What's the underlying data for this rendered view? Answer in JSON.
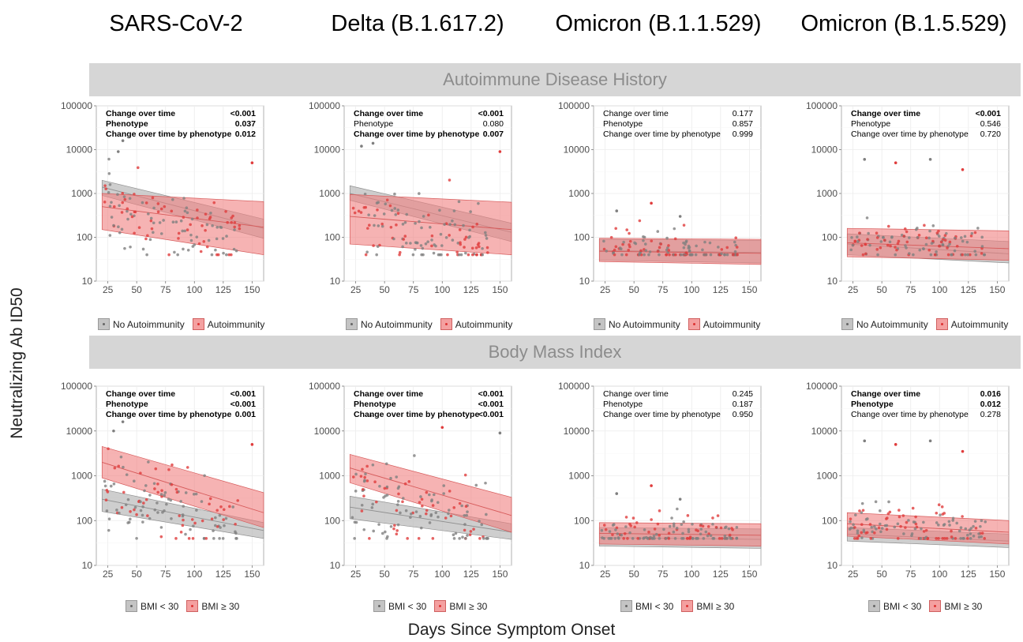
{
  "column_titles": [
    "SARS-CoV-2",
    "Delta (B.1.617.2)",
    "Omicron (B.1.1.529)",
    "Omicron (B.1.5.529)"
  ],
  "row_strips": [
    "Autoimmune Disease History",
    "Body Mass Index"
  ],
  "y_axis_label": "Neutralizing Ab ID50",
  "x_axis_label": "Days Since Symptom Onset",
  "legends": [
    {
      "gray": "No Autoimmunity",
      "red": "Autoimmunity"
    },
    {
      "gray": "BMI < 30",
      "red": "BMI ≥ 30"
    }
  ],
  "stat_labels": [
    "Change over time",
    "Phenotype",
    "Change over time by phenotype"
  ],
  "colors": {
    "gray_fill": "#bdbdbd",
    "red_fill": "#f08080",
    "gray_point": "#7f7f7f",
    "red_point": "#e03c3c",
    "strip": "#d6d6d6"
  },
  "chart_data": [
    {
      "type": "scatter",
      "row": 0,
      "col": 0,
      "ylog": true,
      "ylim": [
        10,
        100000
      ],
      "xlim": [
        15,
        160
      ],
      "x_ticks": [
        25,
        50,
        75,
        100,
        125,
        150
      ],
      "y_ticks": [
        10,
        100,
        1000,
        10000,
        100000
      ],
      "y_tick_labels": [
        "10",
        "100",
        "1000",
        "10000",
        "100000"
      ],
      "stats": [
        {
          "value": "<0.001",
          "bold": true
        },
        {
          "value": "0.037",
          "bold": true
        },
        {
          "value": "0.012",
          "bold": true
        }
      ],
      "series": [
        {
          "name": "No Autoimmunity",
          "fit": [
            [
              20,
              1400
            ],
            [
              160,
              160
            ]
          ],
          "ci_upper": [
            [
              20,
              2000
            ],
            [
              160,
              260
            ]
          ],
          "ci_lower": [
            [
              20,
              900
            ],
            [
              160,
              95
            ]
          ]
        },
        {
          "name": "Autoimmunity",
          "fit": [
            [
              20,
              500
            ],
            [
              160,
              170
            ]
          ],
          "ci_upper": [
            [
              20,
              1000
            ],
            [
              160,
              650
            ]
          ],
          "ci_lower": [
            [
              20,
              150
            ],
            [
              160,
              40
            ]
          ]
        }
      ],
      "point_center": 400,
      "outliers": [
        [
          38,
          16000
        ],
        [
          150,
          5000
        ],
        [
          34,
          9000
        ]
      ]
    },
    {
      "type": "scatter",
      "row": 0,
      "col": 1,
      "ylog": true,
      "ylim": [
        10,
        100000
      ],
      "xlim": [
        15,
        160
      ],
      "x_ticks": [
        25,
        50,
        75,
        100,
        125,
        150
      ],
      "y_ticks": [
        10,
        100,
        1000,
        10000,
        100000
      ],
      "y_tick_labels": [
        "10",
        "100",
        "1000",
        "10000",
        "100000"
      ],
      "stats": [
        {
          "value": "<0.001",
          "bold": true
        },
        {
          "value": "0.080",
          "bold": false
        },
        {
          "value": "0.007",
          "bold": true
        }
      ],
      "series": [
        {
          "name": "No Autoimmunity",
          "fit": [
            [
              20,
              1000
            ],
            [
              160,
              130
            ]
          ],
          "ci_upper": [
            [
              20,
              1500
            ],
            [
              160,
              210
            ]
          ],
          "ci_lower": [
            [
              20,
              700
            ],
            [
              160,
              80
            ]
          ]
        },
        {
          "name": "Autoimmunity",
          "fit": [
            [
              20,
              300
            ],
            [
              160,
              150
            ]
          ],
          "ci_upper": [
            [
              20,
              950
            ],
            [
              160,
              630
            ]
          ],
          "ci_lower": [
            [
              20,
              70
            ],
            [
              160,
              40
            ]
          ]
        }
      ],
      "point_center": 300,
      "outliers": [
        [
          40,
          14000
        ],
        [
          150,
          9000
        ],
        [
          30,
          12000
        ]
      ]
    },
    {
      "type": "scatter",
      "row": 0,
      "col": 2,
      "ylog": true,
      "ylim": [
        10,
        100000
      ],
      "xlim": [
        15,
        160
      ],
      "x_ticks": [
        25,
        50,
        75,
        100,
        125,
        150
      ],
      "y_ticks": [
        10,
        100,
        1000,
        10000,
        100000
      ],
      "y_tick_labels": [
        "10",
        "100",
        "1000",
        "10000",
        "100000"
      ],
      "stats": [
        {
          "value": "0.177",
          "bold": false
        },
        {
          "value": "0.857",
          "bold": false
        },
        {
          "value": "0.999",
          "bold": false
        }
      ],
      "series": [
        {
          "name": "No Autoimmunity",
          "fit": [
            [
              20,
              50
            ],
            [
              160,
              45
            ]
          ],
          "ci_upper": [
            [
              20,
              90
            ],
            [
              160,
              85
            ]
          ],
          "ci_lower": [
            [
              20,
              30
            ],
            [
              160,
              26
            ]
          ]
        },
        {
          "name": "Autoimmunity",
          "fit": [
            [
              20,
              48
            ],
            [
              160,
              43
            ]
          ],
          "ci_upper": [
            [
              20,
              95
            ],
            [
              160,
              90
            ]
          ],
          "ci_lower": [
            [
              20,
              28
            ],
            [
              160,
              24
            ]
          ]
        }
      ],
      "point_center": 55,
      "outliers": [
        [
          35,
          400
        ],
        [
          65,
          600
        ],
        [
          90,
          300
        ]
      ]
    },
    {
      "type": "scatter",
      "row": 0,
      "col": 3,
      "ylog": true,
      "ylim": [
        10,
        100000
      ],
      "xlim": [
        15,
        160
      ],
      "x_ticks": [
        25,
        50,
        75,
        100,
        125,
        150
      ],
      "y_ticks": [
        10,
        100,
        1000,
        10000,
        100000
      ],
      "y_tick_labels": [
        "10",
        "100",
        "1000",
        "10000",
        "100000"
      ],
      "stats": [
        {
          "value": "<0.001",
          "bold": true
        },
        {
          "value": "0.546",
          "bold": false
        },
        {
          "value": "0.720",
          "bold": false
        }
      ],
      "series": [
        {
          "name": "No Autoimmunity",
          "fit": [
            [
              20,
              70
            ],
            [
              160,
              42
            ]
          ],
          "ci_upper": [
            [
              20,
              120
            ],
            [
              160,
              80
            ]
          ],
          "ci_lower": [
            [
              20,
              40
            ],
            [
              160,
              26
            ]
          ]
        },
        {
          "name": "Autoimmunity",
          "fit": [
            [
              20,
              75
            ],
            [
              160,
              55
            ]
          ],
          "ci_upper": [
            [
              20,
              160
            ],
            [
              160,
              140
            ]
          ],
          "ci_lower": [
            [
              20,
              36
            ],
            [
              160,
              30
            ]
          ]
        }
      ],
      "point_center": 80,
      "outliers": [
        [
          35,
          6000
        ],
        [
          62,
          5000
        ],
        [
          92,
          6000
        ],
        [
          120,
          3500
        ]
      ]
    },
    {
      "type": "scatter",
      "row": 1,
      "col": 0,
      "ylog": true,
      "ylim": [
        10,
        100000
      ],
      "xlim": [
        15,
        160
      ],
      "x_ticks": [
        25,
        50,
        75,
        100,
        125,
        150
      ],
      "y_ticks": [
        10,
        100,
        1000,
        10000,
        100000
      ],
      "y_tick_labels": [
        "10",
        "100",
        "1000",
        "10000",
        "100000"
      ],
      "stats": [
        {
          "value": "<0.001",
          "bold": true
        },
        {
          "value": "<0.001",
          "bold": true
        },
        {
          "value": "0.001",
          "bold": true
        }
      ],
      "series": [
        {
          "name": "BMI < 30",
          "fit": [
            [
              20,
              300
            ],
            [
              160,
              60
            ]
          ],
          "ci_upper": [
            [
              20,
              500
            ],
            [
              160,
              90
            ]
          ],
          "ci_lower": [
            [
              20,
              160
            ],
            [
              160,
              40
            ]
          ]
        },
        {
          "name": "BMI ≥ 30",
          "fit": [
            [
              20,
              2000
            ],
            [
              160,
              150
            ]
          ],
          "ci_upper": [
            [
              20,
              4500
            ],
            [
              160,
              420
            ]
          ],
          "ci_lower": [
            [
              20,
              900
            ],
            [
              160,
              70
            ]
          ]
        }
      ],
      "point_center": 400,
      "outliers": [
        [
          38,
          16000
        ],
        [
          150,
          5000
        ],
        [
          30,
          10000
        ]
      ]
    },
    {
      "type": "scatter",
      "row": 1,
      "col": 1,
      "ylog": true,
      "ylim": [
        10,
        100000
      ],
      "xlim": [
        15,
        160
      ],
      "x_ticks": [
        25,
        50,
        75,
        100,
        125,
        150
      ],
      "y_ticks": [
        10,
        100,
        1000,
        10000,
        100000
      ],
      "y_tick_labels": [
        "10",
        "100",
        "1000",
        "10000",
        "100000"
      ],
      "stats": [
        {
          "value": "<0.001",
          "bold": true
        },
        {
          "value": "<0.001",
          "bold": true
        },
        {
          "value": "<0.001",
          "bold": true
        }
      ],
      "series": [
        {
          "name": "BMI < 30",
          "fit": [
            [
              20,
              200
            ],
            [
              160,
              55
            ]
          ],
          "ci_upper": [
            [
              20,
              350
            ],
            [
              160,
              85
            ]
          ],
          "ci_lower": [
            [
              20,
              110
            ],
            [
              160,
              38
            ]
          ]
        },
        {
          "name": "BMI ≥ 30",
          "fit": [
            [
              20,
              1500
            ],
            [
              160,
              130
            ]
          ],
          "ci_upper": [
            [
              20,
              3000
            ],
            [
              160,
              330
            ]
          ],
          "ci_lower": [
            [
              20,
              700
            ],
            [
              160,
              55
            ]
          ]
        }
      ],
      "point_center": 350,
      "outliers": [
        [
          38,
          22000
        ],
        [
          100,
          12000
        ],
        [
          150,
          9000
        ]
      ]
    },
    {
      "type": "scatter",
      "row": 1,
      "col": 2,
      "ylog": true,
      "ylim": [
        10,
        100000
      ],
      "xlim": [
        15,
        160
      ],
      "x_ticks": [
        25,
        50,
        75,
        100,
        125,
        150
      ],
      "y_ticks": [
        10,
        100,
        1000,
        10000,
        100000
      ],
      "y_tick_labels": [
        "10",
        "100",
        "1000",
        "10000",
        "100000"
      ],
      "stats": [
        {
          "value": "0.245",
          "bold": false
        },
        {
          "value": "0.187",
          "bold": false
        },
        {
          "value": "0.950",
          "bold": false
        }
      ],
      "series": [
        {
          "name": "BMI < 30",
          "fit": [
            [
              20,
              42
            ],
            [
              160,
              38
            ]
          ],
          "ci_upper": [
            [
              20,
              70
            ],
            [
              160,
              65
            ]
          ],
          "ci_lower": [
            [
              20,
              27
            ],
            [
              160,
              24
            ]
          ]
        },
        {
          "name": "BMI ≥ 30",
          "fit": [
            [
              20,
              52
            ],
            [
              160,
              47
            ]
          ],
          "ci_upper": [
            [
              20,
              90
            ],
            [
              160,
              85
            ]
          ],
          "ci_lower": [
            [
              20,
              30
            ],
            [
              160,
              27
            ]
          ]
        }
      ],
      "point_center": 55,
      "outliers": [
        [
          35,
          400
        ],
        [
          65,
          600
        ],
        [
          90,
          300
        ]
      ]
    },
    {
      "type": "scatter",
      "row": 1,
      "col": 3,
      "ylog": true,
      "ylim": [
        10,
        100000
      ],
      "xlim": [
        15,
        160
      ],
      "x_ticks": [
        25,
        50,
        75,
        100,
        125,
        150
      ],
      "y_ticks": [
        10,
        100,
        1000,
        10000,
        100000
      ],
      "y_tick_labels": [
        "10",
        "100",
        "1000",
        "10000",
        "100000"
      ],
      "stats": [
        {
          "value": "0.016",
          "bold": true
        },
        {
          "value": "0.012",
          "bold": true
        },
        {
          "value": "0.278",
          "bold": false
        }
      ],
      "series": [
        {
          "name": "BMI < 30",
          "fit": [
            [
              20,
              50
            ],
            [
              160,
              35
            ]
          ],
          "ci_upper": [
            [
              20,
              70
            ],
            [
              160,
              50
            ]
          ],
          "ci_lower": [
            [
              20,
              35
            ],
            [
              160,
              25
            ]
          ]
        },
        {
          "name": "BMI ≥ 30",
          "fit": [
            [
              20,
              85
            ],
            [
              160,
              55
            ]
          ],
          "ci_upper": [
            [
              20,
              150
            ],
            [
              160,
              100
            ]
          ],
          "ci_lower": [
            [
              20,
              45
            ],
            [
              160,
              30
            ]
          ]
        }
      ],
      "point_center": 80,
      "outliers": [
        [
          35,
          6000
        ],
        [
          62,
          5000
        ],
        [
          92,
          6000
        ],
        [
          120,
          3500
        ]
      ]
    }
  ]
}
